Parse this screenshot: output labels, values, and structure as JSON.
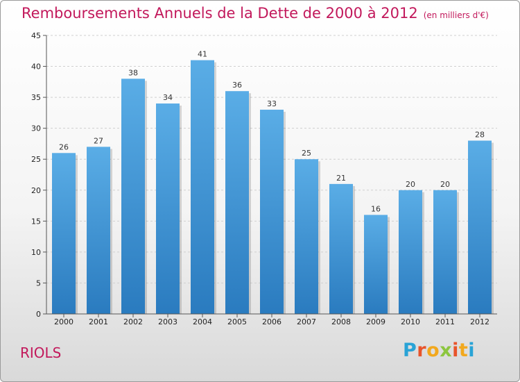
{
  "header": {
    "title": "Remboursements Annuels de la Dette de 2000 à 2012",
    "unit": "(en milliers d'€)"
  },
  "footer": {
    "commune": "RIOLS",
    "logo": {
      "letters": [
        "P",
        "r",
        "o",
        "x",
        "i",
        "t",
        "i"
      ],
      "colors": [
        "#29a3d6",
        "#e8542b",
        "#f2a81d",
        "#8cc63e",
        "#e8542b",
        "#f2a81d",
        "#29a3d6"
      ]
    }
  },
  "colors": {
    "bar_top": "#5aade6",
    "bar_bottom": "#2a7bbf",
    "title": "#c2185b",
    "grid": "#cfcfcf"
  },
  "chart_data": {
    "type": "bar",
    "categories": [
      "2000",
      "2001",
      "2002",
      "2003",
      "2004",
      "2005",
      "2006",
      "2007",
      "2008",
      "2009",
      "2010",
      "2011",
      "2012"
    ],
    "values": [
      26,
      27,
      38,
      34,
      41,
      36,
      33,
      25,
      21,
      16,
      20,
      20,
      28
    ],
    "ylim": [
      0,
      45
    ],
    "yticks": [
      0,
      5,
      10,
      15,
      20,
      25,
      30,
      35,
      40,
      45
    ],
    "grid": "horizontal, dashed",
    "legend": "none"
  }
}
